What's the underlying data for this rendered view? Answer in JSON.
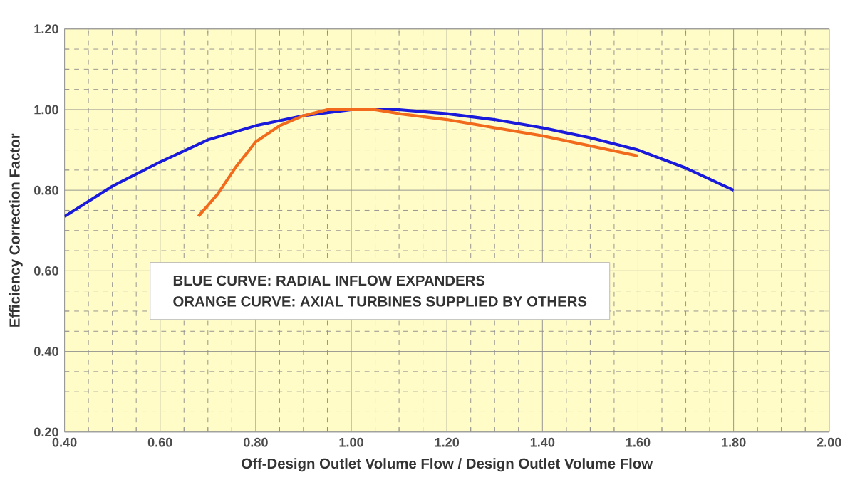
{
  "chart_data": {
    "type": "line",
    "xlabel": "Off-Design Outlet Volume Flow / Design Outlet Volume Flow",
    "ylabel": "Efficiency Correction Factor",
    "annotations": [
      "BLUE CURVE: RADIAL INFLOW EXPANDERS",
      "ORANGE CURVE: AXIAL TURBINES SUPPLIED BY OTHERS"
    ],
    "xlim": [
      0.4,
      2.0
    ],
    "xticks": [
      {
        "value": 0.4,
        "label": "0.40"
      },
      {
        "value": 0.6,
        "label": "0.60"
      },
      {
        "value": 0.8,
        "label": "0.80"
      },
      {
        "value": 1.0,
        "label": "1.00"
      },
      {
        "value": 1.2,
        "label": "1.20"
      },
      {
        "value": 1.4,
        "label": "1.40"
      },
      {
        "value": 1.6,
        "label": "1.60"
      },
      {
        "value": 1.8,
        "label": "1.80"
      },
      {
        "value": 2.0,
        "label": "2.00"
      }
    ],
    "ylim": [
      0.2,
      1.2
    ],
    "yticks": [
      {
        "value": 0.2,
        "label": "0.20"
      },
      {
        "value": 0.4,
        "label": "0.40"
      },
      {
        "value": 0.6,
        "label": "0.60"
      },
      {
        "value": 0.8,
        "label": "0.80"
      },
      {
        "value": 1.0,
        "label": "1.00"
      },
      {
        "value": 1.2,
        "label": "1.20"
      }
    ],
    "grid": true,
    "marker": "none",
    "line_style": "solid",
    "series": [
      {
        "color": "#1a1adb",
        "x": [
          0.4,
          0.5,
          0.6,
          0.7,
          0.8,
          0.9,
          1.0,
          1.1,
          1.2,
          1.3,
          1.4,
          1.5,
          1.6,
          1.7,
          1.8
        ],
        "values": [
          0.735,
          0.81,
          0.87,
          0.925,
          0.96,
          0.985,
          1.0,
          1.0,
          0.99,
          0.975,
          0.955,
          0.93,
          0.9,
          0.855,
          0.8
        ]
      },
      {
        "color": "#f26a1b",
        "x": [
          0.68,
          0.72,
          0.76,
          0.8,
          0.85,
          0.9,
          0.95,
          1.05,
          1.1,
          1.2,
          1.3,
          1.4,
          1.5,
          1.6
        ],
        "values": [
          0.735,
          0.79,
          0.86,
          0.92,
          0.96,
          0.985,
          1.0,
          1.0,
          0.99,
          0.975,
          0.955,
          0.935,
          0.91,
          0.885
        ]
      }
    ]
  }
}
